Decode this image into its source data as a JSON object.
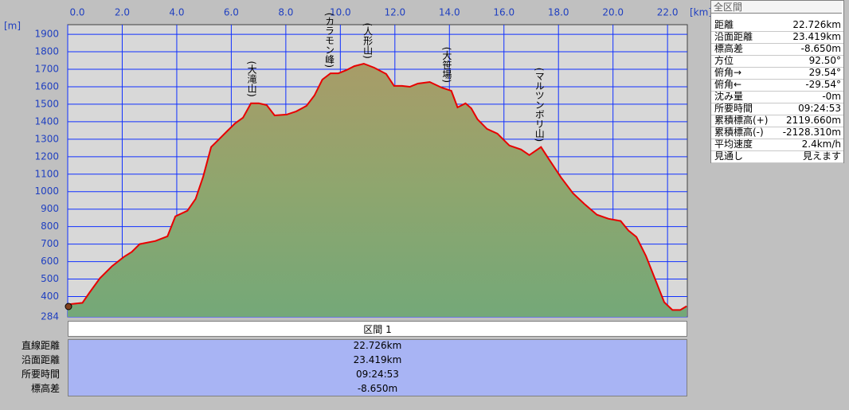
{
  "chart_data": {
    "type": "area",
    "x_unit": "[km]",
    "y_unit": "[m]",
    "x": [
      0,
      0.54,
      0.8,
      1.18,
      1.62,
      2.06,
      2.35,
      2.64,
      3.22,
      3.66,
      3.95,
      4.39,
      4.69,
      4.97,
      5.26,
      5.55,
      5.84,
      6.14,
      6.43,
      6.72,
      7.01,
      7.3,
      7.59,
      8.03,
      8.38,
      8.76,
      9.05,
      9.34,
      9.64,
      9.93,
      10.22,
      10.51,
      10.86,
      11.24,
      11.68,
      11.97,
      12.26,
      12.55,
      12.84,
      13.28,
      13.72,
      14.07,
      14.3,
      14.59,
      14.8,
      15.03,
      15.38,
      15.76,
      16.2,
      16.63,
      16.93,
      17.36,
      17.65,
      18.09,
      18.53,
      18.97,
      19.41,
      19.84,
      20.28,
      20.57,
      20.86,
      21.21,
      21.59,
      21.88,
      22.18,
      22.47,
      22.7
    ],
    "series": [
      {
        "color": "#e80000",
        "values": [
          355,
          364,
          423,
          505,
          573,
          627,
          655,
          700,
          718,
          745,
          859,
          891,
          959,
          1086,
          1255,
          1300,
          1345,
          1391,
          1423,
          1505,
          1505,
          1495,
          1436,
          1441,
          1459,
          1491,
          1550,
          1641,
          1677,
          1677,
          1695,
          1718,
          1732,
          1709,
          1673,
          1605,
          1605,
          1600,
          1618,
          1627,
          1595,
          1577,
          1482,
          1505,
          1477,
          1414,
          1359,
          1332,
          1264,
          1241,
          1209,
          1255,
          1186,
          1082,
          991,
          927,
          868,
          845,
          832,
          777,
          741,
          632,
          482,
          368,
          323,
          323,
          345
        ]
      }
    ],
    "xlim": [
      0,
      22.726
    ],
    "ylim": [
      284,
      1955
    ],
    "xticks": [
      {
        "value": 0,
        "label": "0.0"
      },
      {
        "value": 2,
        "label": "2.0"
      },
      {
        "value": 4,
        "label": "4.0"
      },
      {
        "value": 6,
        "label": "6.0"
      },
      {
        "value": 8,
        "label": "8.0"
      },
      {
        "value": 10,
        "label": "10.0"
      },
      {
        "value": 12,
        "label": "12.0"
      },
      {
        "value": 14,
        "label": "14.0"
      },
      {
        "value": 16,
        "label": "16.0"
      },
      {
        "value": 18,
        "label": "18.0"
      },
      {
        "value": 20,
        "label": "20.0"
      },
      {
        "value": 22,
        "label": "22.0"
      }
    ],
    "yticks": [
      284,
      400,
      500,
      600,
      700,
      800,
      900,
      1000,
      1100,
      1200,
      1300,
      1400,
      1500,
      1600,
      1700,
      1800,
      1900
    ],
    "grid": true,
    "grid_color": "#1030ff",
    "annotations": [
      {
        "text": "(大滝山)",
        "x": 6.75
      },
      {
        "text": "(カラモン峰)",
        "x": 9.6
      },
      {
        "text": "(人形山)",
        "x": 11.0
      },
      {
        "text": "(大笹場)",
        "x": 13.9
      },
      {
        "text": "(マルツンボリ山)",
        "x": 17.3
      }
    ]
  },
  "section_table": {
    "header": "区間 1",
    "rows": [
      [
        "直線距離",
        "22.726km"
      ],
      [
        "沿面距離",
        "23.419km"
      ],
      [
        "所要時間",
        "09:24:53"
      ],
      [
        "標高差",
        "-8.650m"
      ]
    ]
  },
  "summary_panel": {
    "title": "全区間",
    "rows": [
      [
        "距離",
        "22.726km"
      ],
      [
        "沿面距離",
        "23.419km"
      ],
      [
        "標高差",
        "-8.650m"
      ],
      [
        "方位",
        "92.50°"
      ],
      [
        "俯角→",
        "29.54°"
      ],
      [
        "俯角←",
        "-29.54°"
      ],
      [
        "沈み量",
        "-0m"
      ],
      [
        "所要時間",
        "09:24:53"
      ],
      [
        "累積標高(+)",
        "2119.660m"
      ],
      [
        "累積標高(-)",
        "-2128.310m"
      ],
      [
        "平均速度",
        "2.4km/h"
      ],
      [
        "見通し",
        "見えます"
      ]
    ]
  }
}
